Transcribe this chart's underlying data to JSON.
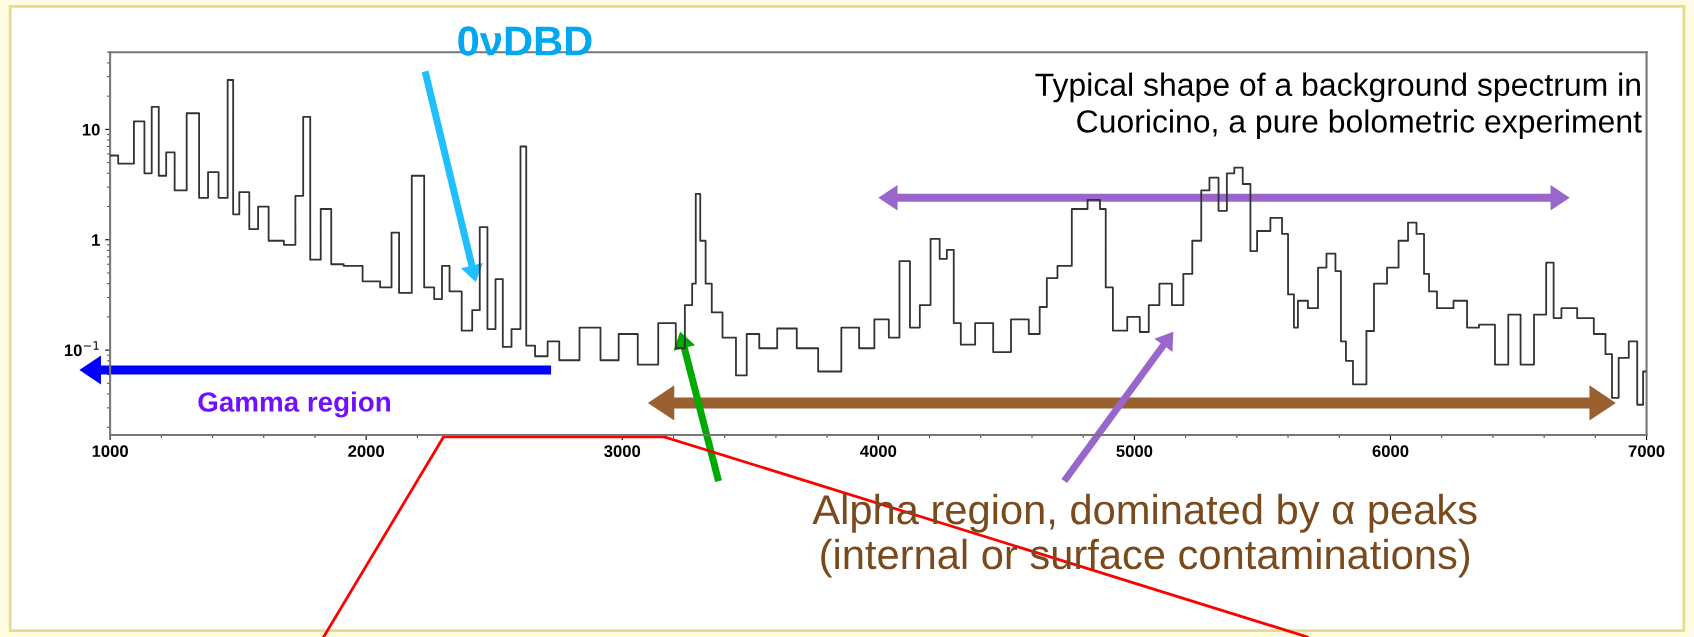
{
  "chart_data": {
    "type": "step",
    "color": "#333333",
    "marker": "none",
    "line_style": "solid",
    "grid": false,
    "legend": false,
    "log": "y",
    "x": [
      1000,
      1063,
      1123,
      1145,
      1180,
      1200,
      1238,
      1266,
      1332,
      1363,
      1402,
      1445,
      1473,
      1488,
      1521,
      1566,
      1590,
      1648,
      1709,
      1738,
      1770,
      1793,
      1852,
      1875,
      1949,
      2023,
      2086,
      2112,
      2145,
      2211,
      2242,
      2289,
      2303,
      2348,
      2398,
      2430,
      2457,
      2490,
      2520,
      2547,
      2588,
      2617,
      2633,
      2686,
      2731,
      2777,
      2889,
      2941,
      3031,
      3090,
      3191,
      3227,
      3262,
      3284,
      3290,
      3319,
      3332,
      3367,
      3416,
      3472,
      3500,
      3570,
      3640,
      3723,
      3807,
      3904,
      3946,
      4023,
      4059,
      4106,
      4141,
      4183,
      4225,
      4254,
      4281,
      4308,
      4336,
      4420,
      4477,
      4559,
      4616,
      4644,
      4672,
      4727,
      4784,
      4850,
      4881,
      4895,
      4937,
      5007,
      5035,
      5077,
      5118,
      5175,
      5207,
      5245,
      5277,
      5309,
      5348,
      5374,
      5406,
      5440,
      5466,
      5492,
      5570,
      5583,
      5617,
      5629,
      5648,
      5707,
      5727,
      5773,
      5797,
      5816,
      5836,
      5871,
      5902,
      5910,
      5961,
      6012,
      6051,
      6086,
      6117,
      6145,
      6156,
      6207,
      6285,
      6313,
      6378,
      6438,
      6482,
      6534,
      6587,
      6629,
      6645,
      6690,
      6768,
      6820,
      6859,
      6871,
      6911,
      6950,
      6977,
      6996
    ],
    "values": [
      5.8,
      4.9,
      11.8,
      4.0,
      16,
      3.8,
      6.2,
      2.8,
      14,
      2.4,
      4.1,
      2.4,
      28,
      1.7,
      2.7,
      1.25,
      2.0,
      0.98,
      0.9,
      2.5,
      13,
      0.66,
      1.9,
      0.6,
      0.58,
      0.42,
      0.37,
      1.16,
      0.33,
      3.8,
      0.37,
      0.29,
      0.58,
      0.34,
      0.15,
      0.23,
      1.3,
      0.155,
      0.44,
      0.107,
      0.155,
      7.0,
      0.11,
      0.088,
      0.12,
      0.081,
      0.16,
      0.081,
      0.14,
      0.074,
      0.176,
      0.104,
      0.256,
      0.4,
      2.6,
      0.98,
      0.4,
      0.22,
      0.13,
      0.059,
      0.14,
      0.104,
      0.157,
      0.104,
      0.064,
      0.16,
      0.104,
      0.19,
      0.13,
      0.64,
      0.16,
      0.256,
      1.02,
      0.67,
      0.81,
      0.176,
      0.112,
      0.176,
      0.096,
      0.19,
      0.14,
      0.246,
      0.45,
      0.58,
      1.9,
      2.3,
      1.9,
      0.37,
      0.15,
      0.2,
      0.146,
      0.256,
      0.4,
      0.256,
      0.49,
      0.98,
      2.8,
      3.66,
      1.83,
      4.0,
      4.5,
      3.2,
      0.79,
      1.2,
      1.58,
      1.13,
      0.32,
      0.16,
      0.28,
      0.24,
      0.56,
      0.75,
      0.52,
      0.12,
      0.08,
      0.049,
      0.049,
      0.149,
      0.4,
      0.56,
      0.98,
      1.43,
      1.13,
      0.49,
      0.34,
      0.24,
      0.28,
      0.16,
      0.17,
      0.074,
      0.21,
      0.074,
      0.21,
      0.62,
      0.195,
      0.24,
      0.195,
      0.14,
      0.092,
      0.037,
      0.085,
      0.12,
      0.032,
      0.064
    ],
    "xlim": [
      1000,
      7000
    ],
    "xticks": [
      1000,
      2000,
      3000,
      4000,
      5000,
      6000,
      7000
    ],
    "ylim": [
      0.017,
      50
    ],
    "yticks": [
      {
        "value": 0.1,
        "label": "10$^{−1}$"
      },
      1,
      10
    ],
    "annotations": [
      "0νDBD",
      "Typical shape of a background spectrum in\nCuoricino, a pure bolometric experiment",
      "Gamma region",
      "Alpha region, dominated by α peaks\n(internal or surface contaminations)"
    ]
  }
}
